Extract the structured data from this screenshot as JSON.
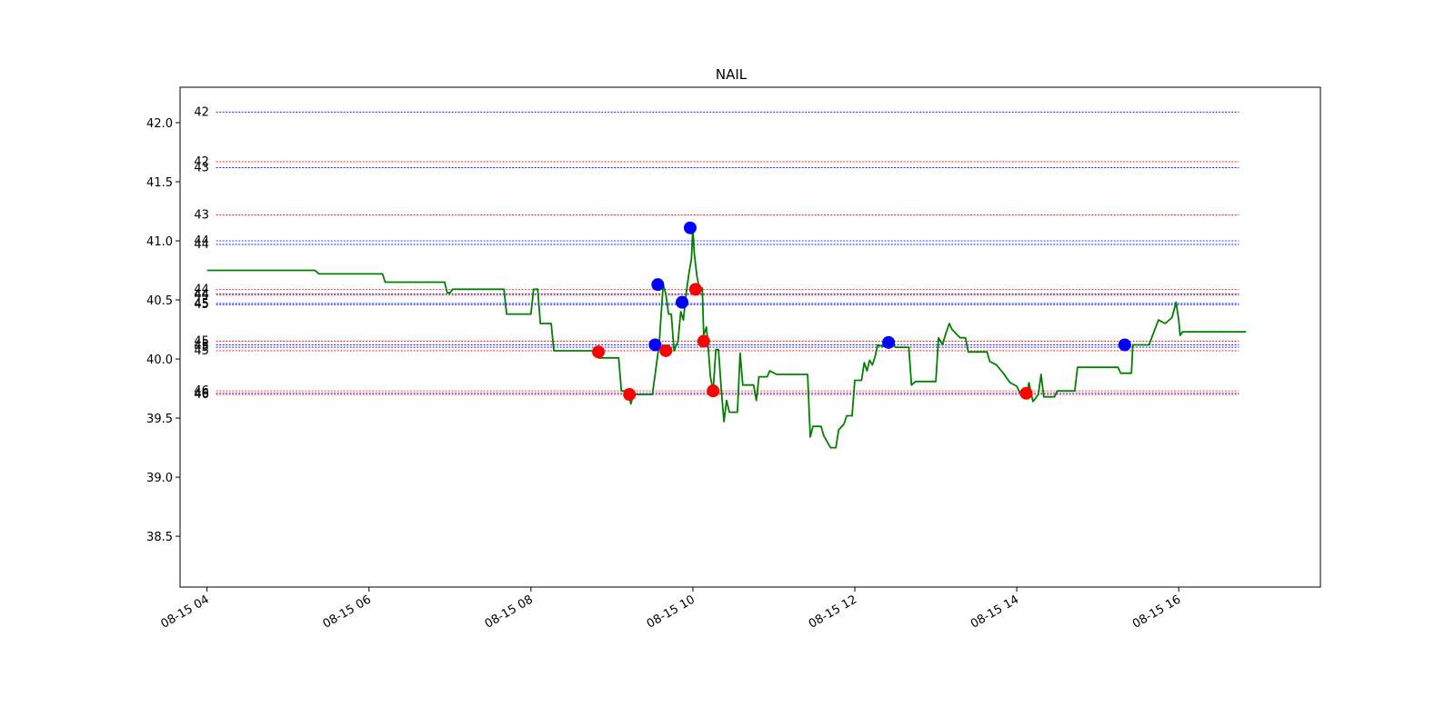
{
  "chart_data": {
    "type": "line",
    "title": "NAIL",
    "xlabel": "",
    "ylabel": "",
    "x_start": "2024-08-15 04:00",
    "x_range": [
      "2024-08-15 03:40",
      "2024-08-15 17:45"
    ],
    "ylim": [
      38.07,
      42.3
    ],
    "x_ticks": [
      {
        "t": "2024-08-15 04:00",
        "label": "08-15 04"
      },
      {
        "t": "2024-08-15 06:00",
        "label": "08-15 06"
      },
      {
        "t": "2024-08-15 08:00",
        "label": "08-15 08"
      },
      {
        "t": "2024-08-15 10:00",
        "label": "08-15 10"
      },
      {
        "t": "2024-08-15 12:00",
        "label": "08-15 12"
      },
      {
        "t": "2024-08-15 14:00",
        "label": "08-15 14"
      },
      {
        "t": "2024-08-15 16:00",
        "label": "08-15 16"
      }
    ],
    "y_ticks": [
      {
        "v": 38.5,
        "label": "38.5"
      },
      {
        "v": 39.0,
        "label": "39.0"
      },
      {
        "v": 39.5,
        "label": "39.5"
      },
      {
        "v": 40.0,
        "label": "40.0"
      },
      {
        "v": 40.5,
        "label": "40.5"
      },
      {
        "v": 41.0,
        "label": "41.0"
      },
      {
        "v": 41.5,
        "label": "41.5"
      },
      {
        "v": 42.0,
        "label": "42.0"
      }
    ],
    "grid": false,
    "line_color": "#008000",
    "series": [
      {
        "points": [
          [
            "04:00",
            40.75
          ],
          [
            "05:20",
            40.75
          ],
          [
            "05:23",
            40.72
          ],
          [
            "06:10",
            40.72
          ],
          [
            "06:12",
            40.65
          ],
          [
            "06:56",
            40.65
          ],
          [
            "06:58",
            40.56
          ],
          [
            "07:00",
            40.56
          ],
          [
            "07:02",
            40.59
          ],
          [
            "07:40",
            40.59
          ],
          [
            "07:42",
            40.38
          ],
          [
            "08:00",
            40.38
          ],
          [
            "08:02",
            40.59
          ],
          [
            "08:05",
            40.59
          ],
          [
            "08:07",
            40.3
          ],
          [
            "08:15",
            40.3
          ],
          [
            "08:17",
            40.07
          ],
          [
            "08:45",
            40.07
          ],
          [
            "08:47",
            40.06
          ],
          [
            "08:50",
            40.01
          ],
          [
            "09:05",
            40.01
          ],
          [
            "09:07",
            39.73
          ],
          [
            "09:12",
            39.73
          ],
          [
            "09:14",
            39.62
          ],
          [
            "09:16",
            39.7
          ],
          [
            "09:30",
            39.7
          ],
          [
            "09:35",
            40.12
          ],
          [
            "09:38",
            40.63
          ],
          [
            "09:40",
            40.55
          ],
          [
            "09:42",
            40.38
          ],
          [
            "09:44",
            40.38
          ],
          [
            "09:46",
            40.07
          ],
          [
            "09:49",
            40.15
          ],
          [
            "09:51",
            40.4
          ],
          [
            "09:53",
            40.33
          ],
          [
            "09:55",
            40.55
          ],
          [
            "09:57",
            40.72
          ],
          [
            "09:59",
            40.85
          ],
          [
            "10:00",
            41.11
          ],
          [
            "10:01",
            40.9
          ],
          [
            "10:03",
            40.7
          ],
          [
            "10:05",
            40.59
          ],
          [
            "10:07",
            40.6
          ],
          [
            "10:08",
            40.2
          ],
          [
            "10:10",
            40.27
          ],
          [
            "10:11",
            40.15
          ],
          [
            "10:13",
            39.85
          ],
          [
            "10:15",
            39.73
          ],
          [
            "10:17",
            40.08
          ],
          [
            "10:19",
            40.08
          ],
          [
            "10:21",
            39.75
          ],
          [
            "10:23",
            39.47
          ],
          [
            "10:25",
            39.65
          ],
          [
            "10:27",
            39.55
          ],
          [
            "10:33",
            39.55
          ],
          [
            "10:35",
            40.05
          ],
          [
            "10:37",
            39.78
          ],
          [
            "10:45",
            39.78
          ],
          [
            "10:47",
            39.65
          ],
          [
            "10:49",
            39.85
          ],
          [
            "10:55",
            39.85
          ],
          [
            "10:57",
            39.9
          ],
          [
            "11:02",
            39.87
          ],
          [
            "11:25",
            39.87
          ],
          [
            "11:27",
            39.34
          ],
          [
            "11:29",
            39.43
          ],
          [
            "11:35",
            39.43
          ],
          [
            "11:37",
            39.35
          ],
          [
            "11:42",
            39.25
          ],
          [
            "11:46",
            39.25
          ],
          [
            "11:48",
            39.4
          ],
          [
            "11:52",
            39.45
          ],
          [
            "11:54",
            39.52
          ],
          [
            "11:58",
            39.52
          ],
          [
            "12:00",
            39.82
          ],
          [
            "12:05",
            39.82
          ],
          [
            "12:07",
            39.97
          ],
          [
            "12:09",
            39.9
          ],
          [
            "12:11",
            39.99
          ],
          [
            "12:13",
            39.95
          ],
          [
            "12:15",
            40.02
          ],
          [
            "12:17",
            40.12
          ],
          [
            "12:24",
            40.1
          ],
          [
            "12:26",
            40.15
          ],
          [
            "12:30",
            40.1
          ],
          [
            "12:40",
            40.1
          ],
          [
            "12:42",
            39.78
          ],
          [
            "12:45",
            39.81
          ],
          [
            "13:00",
            39.81
          ],
          [
            "13:02",
            40.18
          ],
          [
            "13:05",
            40.12
          ],
          [
            "13:07",
            40.2
          ],
          [
            "13:10",
            40.3
          ],
          [
            "13:12",
            40.25
          ],
          [
            "13:18",
            40.18
          ],
          [
            "13:22",
            40.18
          ],
          [
            "13:24",
            40.06
          ],
          [
            "13:38",
            40.06
          ],
          [
            "13:40",
            39.98
          ],
          [
            "13:45",
            39.95
          ],
          [
            "13:50",
            39.88
          ],
          [
            "13:55",
            39.8
          ],
          [
            "14:00",
            39.77
          ],
          [
            "14:02",
            39.72
          ],
          [
            "14:07",
            39.68
          ],
          [
            "14:09",
            39.8
          ],
          [
            "14:12",
            39.64
          ],
          [
            "14:16",
            39.7
          ],
          [
            "14:18",
            39.87
          ],
          [
            "14:20",
            39.68
          ],
          [
            "14:28",
            39.68
          ],
          [
            "14:30",
            39.73
          ],
          [
            "14:43",
            39.73
          ],
          [
            "14:45",
            39.93
          ],
          [
            "15:15",
            39.93
          ],
          [
            "15:17",
            39.88
          ],
          [
            "15:25",
            39.88
          ],
          [
            "15:26",
            40.12
          ],
          [
            "15:38",
            40.12
          ],
          [
            "15:40",
            40.18
          ],
          [
            "15:45",
            40.33
          ],
          [
            "15:50",
            40.3
          ],
          [
            "15:55",
            40.35
          ],
          [
            "15:58",
            40.48
          ],
          [
            "16:00",
            40.33
          ],
          [
            "16:01",
            40.2
          ],
          [
            "16:03",
            40.23
          ],
          [
            "16:50",
            40.23
          ]
        ]
      }
    ],
    "markers": [
      {
        "t": "08:50",
        "v": 40.06,
        "color": "#ff0000"
      },
      {
        "t": "09:13",
        "v": 39.7,
        "color": "#ff0000"
      },
      {
        "t": "09:32",
        "v": 40.12,
        "color": "#0000ff"
      },
      {
        "t": "09:34",
        "v": 40.63,
        "color": "#0000ff"
      },
      {
        "t": "09:40",
        "v": 40.07,
        "color": "#ff0000"
      },
      {
        "t": "09:52",
        "v": 40.48,
        "color": "#0000ff"
      },
      {
        "t": "09:58",
        "v": 41.11,
        "color": "#0000ff"
      },
      {
        "t": "10:02",
        "v": 40.59,
        "color": "#ff0000"
      },
      {
        "t": "10:08",
        "v": 40.15,
        "color": "#ff0000"
      },
      {
        "t": "10:15",
        "v": 39.73,
        "color": "#ff0000"
      },
      {
        "t": "12:25",
        "v": 40.14,
        "color": "#0000ff"
      },
      {
        "t": "14:07",
        "v": 39.71,
        "color": "#ff0000"
      },
      {
        "t": "15:20",
        "v": 40.12,
        "color": "#0000ff"
      }
    ],
    "hlines": [
      {
        "v": 42.09,
        "label": "42",
        "color": "#0000ff"
      },
      {
        "v": 41.67,
        "label": "42",
        "color": "#ff0000"
      },
      {
        "v": 41.62,
        "label": "43",
        "color": "#0000ff"
      },
      {
        "v": 41.22,
        "label": "43",
        "color": "#ff0000"
      },
      {
        "v": 41.0,
        "label": "44",
        "color": "#0000ff"
      },
      {
        "v": 40.97,
        "label": "44",
        "color": "#0000ff"
      },
      {
        "v": 40.59,
        "label": "44",
        "color": "#ff0000"
      },
      {
        "v": 40.55,
        "label": "44",
        "color": "#0000ff"
      },
      {
        "v": 40.54,
        "label": "44",
        "color": "#ff0000"
      },
      {
        "v": 40.47,
        "label": "45",
        "color": "#0000ff"
      },
      {
        "v": 40.46,
        "label": "45",
        "color": "#0000ff"
      },
      {
        "v": 40.15,
        "label": "45",
        "color": "#ff0000"
      },
      {
        "v": 40.12,
        "label": "45",
        "color": "#0000ff"
      },
      {
        "v": 40.1,
        "label": "45",
        "color": "#0000ff"
      },
      {
        "v": 40.07,
        "label": "45",
        "color": "#ff0000"
      },
      {
        "v": 39.73,
        "label": "46",
        "color": "#ff0000"
      },
      {
        "v": 39.71,
        "label": "46",
        "color": "#0000ff"
      },
      {
        "v": 39.7,
        "label": "46",
        "color": "#ff0000"
      }
    ]
  }
}
